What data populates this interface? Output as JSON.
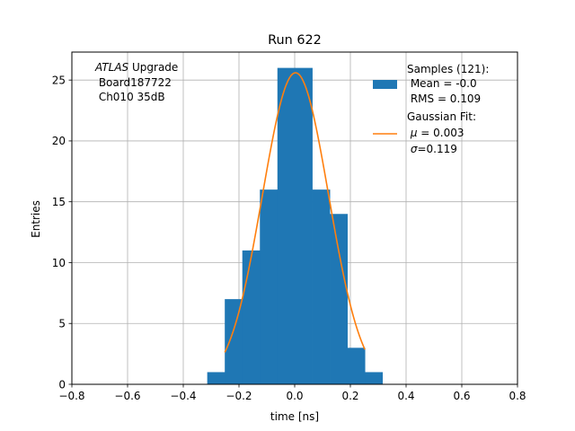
{
  "chart_data": {
    "type": "bar",
    "title": "Run 622",
    "xlabel": "time [ns]",
    "ylabel": "Entries",
    "xlim": [
      -0.8,
      0.8
    ],
    "ylim": [
      0,
      27.3
    ],
    "xticks": [
      -0.8,
      -0.6,
      -0.4,
      -0.2,
      0.0,
      0.2,
      0.4,
      0.6,
      0.8
    ],
    "xtick_labels": [
      "−0.8",
      "−0.6",
      "−0.4",
      "−0.2",
      "0.0",
      "0.2",
      "0.4",
      "0.6",
      "0.8"
    ],
    "yticks": [
      0,
      5,
      10,
      15,
      20,
      25
    ],
    "ytick_labels": [
      "0",
      "5",
      "10",
      "15",
      "20",
      "25"
    ],
    "grid": true,
    "histogram": {
      "bin_edges": [
        -0.314,
        -0.251,
        -0.188,
        -0.125,
        -0.062,
        0.0,
        0.063,
        0.126,
        0.189,
        0.252,
        0.315
      ],
      "counts": [
        1,
        7,
        11,
        16,
        26,
        26,
        16,
        14,
        3,
        1
      ],
      "color": "#1f77b4"
    },
    "fit_curve": {
      "mu": 0.003,
      "sigma": 0.119,
      "amplitude": 25.6,
      "x_range": [
        -0.251,
        0.252
      ],
      "color": "#ff7f0e"
    },
    "annotation": {
      "line1_italic": "ATLAS",
      "line1_rest": " Upgrade",
      "line2": " Board187722",
      "line3": " Ch010 35dB"
    },
    "legend": {
      "position": "top-right",
      "hist_line1": "Samples (121):",
      "hist_line2": " Mean = -0.0",
      "hist_line3": " RMS = 0.109",
      "fit_line1": "Gaussian Fit:",
      "fit_line2_sym": "μ",
      "fit_line2_rest": " = 0.003",
      "fit_line3_sym": "σ",
      "fit_line3_rest": "=0.119"
    }
  }
}
